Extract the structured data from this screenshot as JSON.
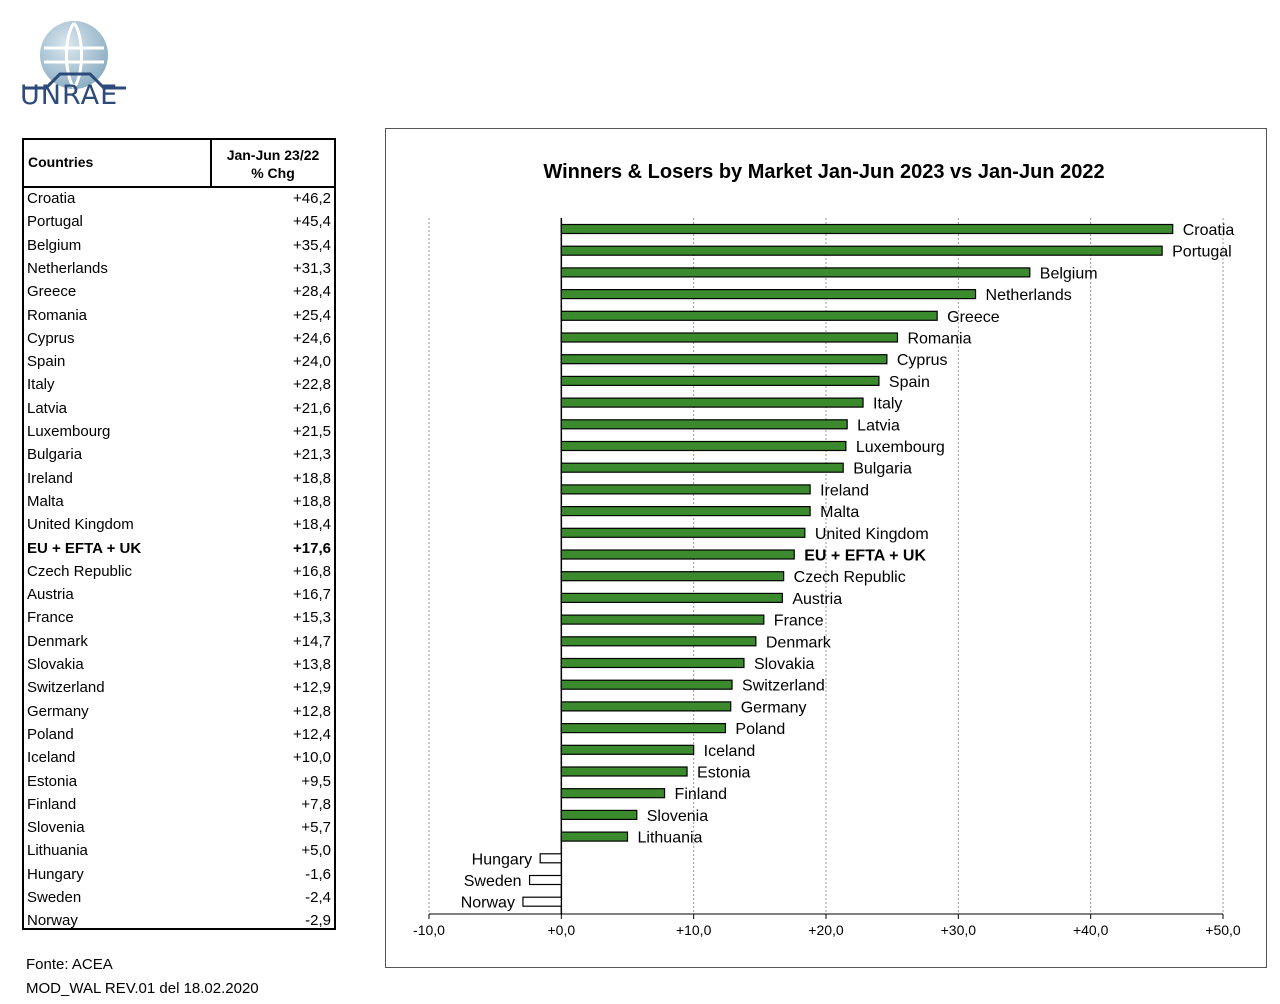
{
  "logo": {
    "name": "UNRAE",
    "text": "UNRAE"
  },
  "table": {
    "header_country": "Countries",
    "header_chg_line1": "Jan-Jun 23/22",
    "header_chg_line2": "% Chg",
    "rows": [
      {
        "country": "Croatia",
        "value": "+46,2"
      },
      {
        "country": "Portugal",
        "value": "+45,4"
      },
      {
        "country": "Belgium",
        "value": "+35,4"
      },
      {
        "country": "Netherlands",
        "value": "+31,3"
      },
      {
        "country": "Greece",
        "value": "+28,4"
      },
      {
        "country": "Romania",
        "value": "+25,4"
      },
      {
        "country": "Cyprus",
        "value": "+24,6"
      },
      {
        "country": "Spain",
        "value": "+24,0"
      },
      {
        "country": "Italy",
        "value": "+22,8"
      },
      {
        "country": "Latvia",
        "value": "+21,6"
      },
      {
        "country": "Luxembourg",
        "value": "+21,5"
      },
      {
        "country": "Bulgaria",
        "value": "+21,3"
      },
      {
        "country": "Ireland",
        "value": "+18,8"
      },
      {
        "country": "Malta",
        "value": "+18,8"
      },
      {
        "country": "United Kingdom",
        "value": "+18,4"
      },
      {
        "country": "EU + EFTA + UK",
        "value": "+17,6",
        "bold": true
      },
      {
        "country": "Czech Republic",
        "value": "+16,8"
      },
      {
        "country": "Austria",
        "value": "+16,7"
      },
      {
        "country": "France",
        "value": "+15,3"
      },
      {
        "country": "Denmark",
        "value": "+14,7"
      },
      {
        "country": "Slovakia",
        "value": "+13,8"
      },
      {
        "country": "Switzerland",
        "value": "+12,9"
      },
      {
        "country": "Germany",
        "value": "+12,8"
      },
      {
        "country": "Poland",
        "value": "+12,4"
      },
      {
        "country": "Iceland",
        "value": "+10,0"
      },
      {
        "country": "Estonia",
        "value": "+9,5"
      },
      {
        "country": "Finland",
        "value": "+7,8"
      },
      {
        "country": "Slovenia",
        "value": "+5,7"
      },
      {
        "country": "Lithuania",
        "value": "+5,0"
      },
      {
        "country": "Hungary",
        "value": "-1,6"
      },
      {
        "country": "Sweden",
        "value": "-2,4"
      },
      {
        "country": "Norway",
        "value": "-2,9"
      }
    ]
  },
  "footer": {
    "source": "Fonte: ACEA",
    "mod_ref": "MOD_WAL REV.01 del 18.02.2020"
  },
  "colors": {
    "positive_bar": "#3b8a2e",
    "negative_bar": "#ffffff",
    "bar_outline": "#000000",
    "grid": "#9a9a9a"
  },
  "chart_data": {
    "type": "bar",
    "orientation": "horizontal",
    "title": "Winners & Losers by Market  Jan-Jun 2023 vs Jan-Jun 2022",
    "xlim": [
      -10,
      50
    ],
    "xticks": [
      -10,
      0,
      10,
      20,
      30,
      40,
      50
    ],
    "xtick_labels": [
      "-10,0",
      "+0,0",
      "+10,0",
      "+20,0",
      "+30,0",
      "+40,0",
      "+50,0"
    ],
    "grid": "vertical",
    "categories": [
      "Croatia",
      "Portugal",
      "Belgium",
      "Netherlands",
      "Greece",
      "Romania",
      "Cyprus",
      "Spain",
      "Italy",
      "Latvia",
      "Luxembourg",
      "Bulgaria",
      "Ireland",
      "Malta",
      "United Kingdom",
      "EU + EFTA + UK",
      "Czech Republic",
      "Austria",
      "France",
      "Denmark",
      "Slovakia",
      "Switzerland",
      "Germany",
      "Poland",
      "Iceland",
      "Estonia",
      "Finland",
      "Slovenia",
      "Lithuania",
      "Hungary",
      "Sweden",
      "Norway"
    ],
    "values": [
      46.2,
      45.4,
      35.4,
      31.3,
      28.4,
      25.4,
      24.6,
      24.0,
      22.8,
      21.6,
      21.5,
      21.3,
      18.8,
      18.8,
      18.4,
      17.6,
      16.8,
      16.7,
      15.3,
      14.7,
      13.8,
      12.9,
      12.8,
      12.4,
      10.0,
      9.5,
      7.8,
      5.7,
      5.0,
      -1.6,
      -2.4,
      -2.9
    ],
    "bold_categories": [
      "EU + EFTA + UK"
    ]
  }
}
